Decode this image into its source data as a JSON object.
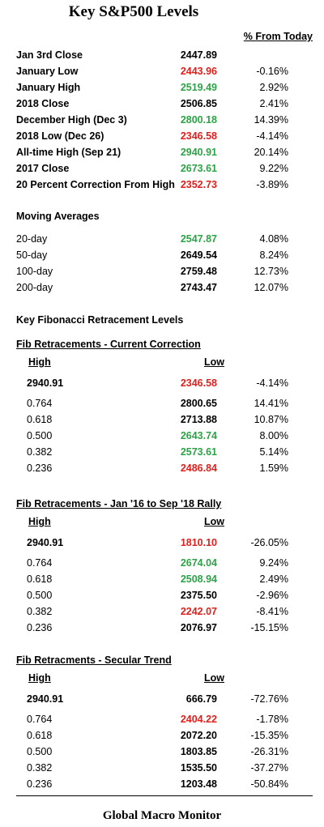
{
  "title": "Key S&P500 Levels",
  "pct_header": "% From Today",
  "key_levels": [
    {
      "label": "Jan 3rd Close",
      "value": "2447.89",
      "color": "black",
      "pct": ""
    },
    {
      "label": "January Low",
      "value": "2443.96",
      "color": "red",
      "pct": "-0.16%"
    },
    {
      "label": "January High",
      "value": "2519.49",
      "color": "green",
      "pct": "2.92%"
    },
    {
      "label": "2018 Close",
      "value": "2506.85",
      "color": "black",
      "pct": "2.41%"
    },
    {
      "label": "December High (Dec 3)",
      "value": "2800.18",
      "color": "green",
      "pct": "14.39%"
    },
    {
      "label": "2018 Low (Dec 26)",
      "value": "2346.58",
      "color": "red",
      "pct": "-4.14%"
    },
    {
      "label": "All-time High (Sep 21)",
      "value": "2940.91",
      "color": "green",
      "pct": "20.14%"
    },
    {
      "label": "2017 Close",
      "value": "2673.61",
      "color": "green",
      "pct": "9.22%"
    },
    {
      "label": "20 Percent Correction From High",
      "value": "2352.73",
      "color": "red",
      "pct": "-3.89%"
    }
  ],
  "moving_averages": {
    "title": "Moving Averages",
    "rows": [
      {
        "label": "20-day",
        "value": "2547.87",
        "color": "green",
        "pct": "4.08%"
      },
      {
        "label": "50-day",
        "value": "2649.54",
        "color": "black",
        "pct": "8.24%"
      },
      {
        "label": "100-day",
        "value": "2759.48",
        "color": "black",
        "pct": "12.73%"
      },
      {
        "label": "200-day",
        "value": "2743.47",
        "color": "black",
        "pct": "12.07%"
      }
    ]
  },
  "fib_title": "Key Fibonacci Retracement Levels",
  "fib_sections": [
    {
      "title": "Fib Retracements - Current Correction",
      "high_label": "High",
      "low_label": "Low",
      "first": {
        "high": "2940.91",
        "low": "2346.58",
        "color": "red",
        "pct": "-4.14%"
      },
      "rows": [
        {
          "level": "0.764",
          "value": "2800.65",
          "color": "black",
          "pct": "14.41%"
        },
        {
          "level": "0.618",
          "value": "2713.88",
          "color": "black",
          "pct": "10.87%"
        },
        {
          "level": "0.500",
          "value": "2643.74",
          "color": "green",
          "pct": "8.00%"
        },
        {
          "level": "0.382",
          "value": "2573.61",
          "color": "green",
          "pct": "5.14%"
        },
        {
          "level": "0.236",
          "value": "2486.84",
          "color": "red",
          "pct": "1.59%"
        }
      ]
    },
    {
      "title": "Fib Retracements - Jan '16 to Sep '18 Rally",
      "high_label": "High",
      "low_label": "Low",
      "first": {
        "high": "2940.91",
        "low": "1810.10",
        "color": "red",
        "pct": "-26.05%"
      },
      "rows": [
        {
          "level": "0.764",
          "value": "2674.04",
          "color": "green",
          "pct": "9.24%"
        },
        {
          "level": "0.618",
          "value": "2508.94",
          "color": "green",
          "pct": "2.49%"
        },
        {
          "level": "0.500",
          "value": "2375.50",
          "color": "black",
          "pct": "-2.96%"
        },
        {
          "level": "0.382",
          "value": "2242.07",
          "color": "red",
          "pct": "-8.41%"
        },
        {
          "level": "0.236",
          "value": "2076.97",
          "color": "black",
          "pct": "-15.15%"
        }
      ]
    },
    {
      "title": "Fib Retracments - Secular Trend",
      "high_label": "High",
      "low_label": "Low",
      "first": {
        "high": "2940.91",
        "low": "666.79",
        "color": "black",
        "pct": "-72.76%"
      },
      "rows": [
        {
          "level": "0.764",
          "value": "2404.22",
          "color": "red",
          "pct": "-1.78%"
        },
        {
          "level": "0.618",
          "value": "2072.20",
          "color": "black",
          "pct": "-15.35%"
        },
        {
          "level": "0.500",
          "value": "1803.85",
          "color": "black",
          "pct": "-26.31%"
        },
        {
          "level": "0.382",
          "value": "1535.50",
          "color": "black",
          "pct": "-37.27%"
        },
        {
          "level": "0.236",
          "value": "1203.48",
          "color": "black",
          "pct": "-50.84%"
        }
      ]
    }
  ],
  "footer": "Global Macro Monitor"
}
